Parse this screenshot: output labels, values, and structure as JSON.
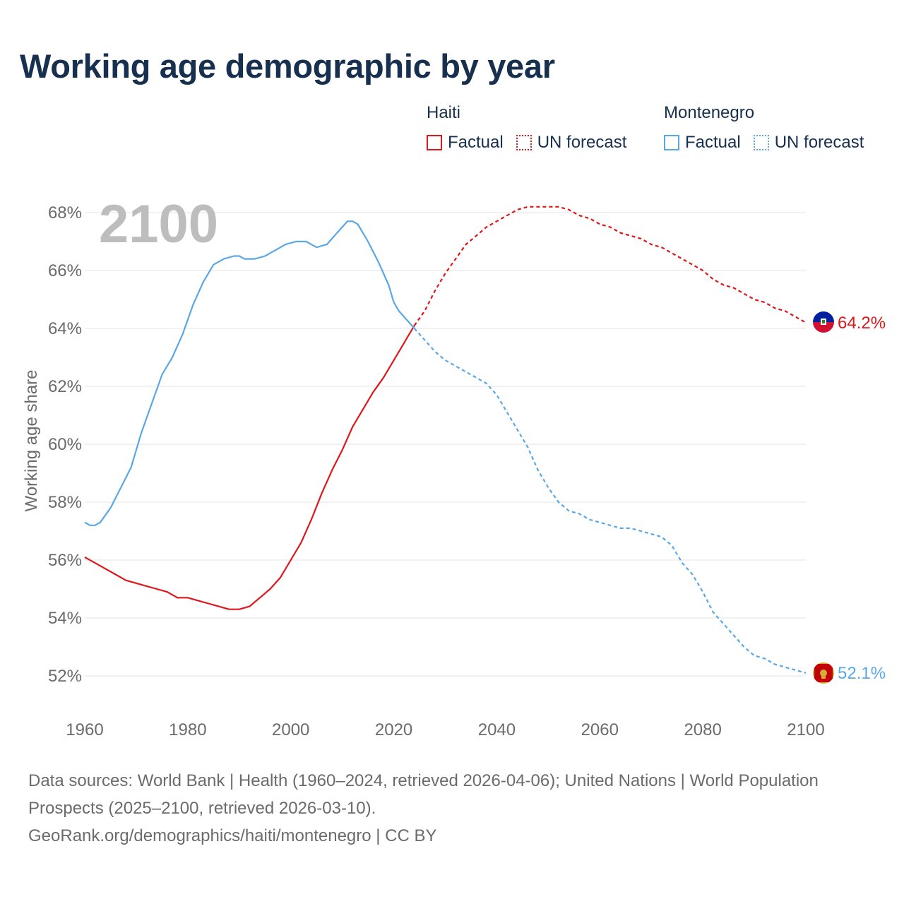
{
  "title": "Working age demographic by year",
  "legend": {
    "groups": [
      {
        "name": "Haiti",
        "color": "#e0161b",
        "items": [
          {
            "label": "Factual",
            "style": "solid"
          },
          {
            "label": "UN forecast",
            "style": "dotted"
          }
        ]
      },
      {
        "name": "Montenegro",
        "color": "#5aa7e6",
        "items": [
          {
            "label": "Factual",
            "style": "solid"
          },
          {
            "label": "UN forecast",
            "style": "dotted"
          }
        ]
      }
    ]
  },
  "chart_data": {
    "type": "line",
    "title": "Working age demographic by year",
    "year_label": "2100",
    "xlabel": "",
    "ylabel": "Working age share",
    "xlim": [
      1960,
      2100
    ],
    "ylim": [
      51,
      69
    ],
    "x_ticks": [
      1960,
      1980,
      2000,
      2020,
      2040,
      2060,
      2080,
      2100
    ],
    "y_ticks": [
      52,
      54,
      56,
      58,
      60,
      62,
      64,
      66,
      68
    ],
    "y_tick_labels": [
      "52%",
      "54%",
      "56%",
      "58%",
      "60%",
      "62%",
      "64%",
      "66%",
      "68%"
    ],
    "grid": true,
    "forecast_start": 2024,
    "series": [
      {
        "name": "Haiti",
        "color": "#e0161b",
        "end_label": "64.2%",
        "flag": "haiti-flag",
        "points": [
          [
            1960,
            56.1
          ],
          [
            1962,
            55.9
          ],
          [
            1964,
            55.7
          ],
          [
            1966,
            55.5
          ],
          [
            1968,
            55.3
          ],
          [
            1970,
            55.2
          ],
          [
            1972,
            55.1
          ],
          [
            1974,
            55.0
          ],
          [
            1976,
            54.9
          ],
          [
            1978,
            54.7
          ],
          [
            1980,
            54.7
          ],
          [
            1982,
            54.6
          ],
          [
            1984,
            54.5
          ],
          [
            1986,
            54.4
          ],
          [
            1988,
            54.3
          ],
          [
            1990,
            54.3
          ],
          [
            1992,
            54.4
          ],
          [
            1994,
            54.7
          ],
          [
            1996,
            55.0
          ],
          [
            1998,
            55.4
          ],
          [
            2000,
            56.0
          ],
          [
            2002,
            56.6
          ],
          [
            2004,
            57.4
          ],
          [
            2006,
            58.3
          ],
          [
            2008,
            59.1
          ],
          [
            2010,
            59.8
          ],
          [
            2012,
            60.6
          ],
          [
            2014,
            61.2
          ],
          [
            2016,
            61.8
          ],
          [
            2018,
            62.3
          ],
          [
            2020,
            62.9
          ],
          [
            2022,
            63.5
          ],
          [
            2024,
            64.1
          ],
          [
            2026,
            64.6
          ],
          [
            2028,
            65.3
          ],
          [
            2030,
            65.9
          ],
          [
            2032,
            66.4
          ],
          [
            2034,
            66.9
          ],
          [
            2036,
            67.2
          ],
          [
            2038,
            67.5
          ],
          [
            2040,
            67.7
          ],
          [
            2042,
            67.9
          ],
          [
            2044,
            68.1
          ],
          [
            2046,
            68.2
          ],
          [
            2048,
            68.2
          ],
          [
            2050,
            68.2
          ],
          [
            2052,
            68.2
          ],
          [
            2054,
            68.1
          ],
          [
            2056,
            67.9
          ],
          [
            2058,
            67.8
          ],
          [
            2060,
            67.6
          ],
          [
            2062,
            67.5
          ],
          [
            2064,
            67.3
          ],
          [
            2066,
            67.2
          ],
          [
            2068,
            67.1
          ],
          [
            2070,
            66.9
          ],
          [
            2072,
            66.8
          ],
          [
            2074,
            66.6
          ],
          [
            2076,
            66.4
          ],
          [
            2078,
            66.2
          ],
          [
            2080,
            66.0
          ],
          [
            2082,
            65.7
          ],
          [
            2084,
            65.5
          ],
          [
            2086,
            65.4
          ],
          [
            2088,
            65.2
          ],
          [
            2090,
            65.0
          ],
          [
            2092,
            64.9
          ],
          [
            2094,
            64.7
          ],
          [
            2096,
            64.6
          ],
          [
            2098,
            64.4
          ],
          [
            2100,
            64.2
          ]
        ]
      },
      {
        "name": "Montenegro",
        "color": "#5aa7e6",
        "end_label": "52.1%",
        "flag": "montenegro-flag",
        "points": [
          [
            1960,
            57.3
          ],
          [
            1961,
            57.2
          ],
          [
            1962,
            57.2
          ],
          [
            1963,
            57.3
          ],
          [
            1965,
            57.8
          ],
          [
            1967,
            58.5
          ],
          [
            1969,
            59.2
          ],
          [
            1971,
            60.4
          ],
          [
            1973,
            61.4
          ],
          [
            1975,
            62.4
          ],
          [
            1977,
            63.0
          ],
          [
            1979,
            63.8
          ],
          [
            1981,
            64.8
          ],
          [
            1983,
            65.6
          ],
          [
            1985,
            66.2
          ],
          [
            1987,
            66.4
          ],
          [
            1989,
            66.5
          ],
          [
            1990,
            66.5
          ],
          [
            1991,
            66.4
          ],
          [
            1993,
            66.4
          ],
          [
            1995,
            66.5
          ],
          [
            1997,
            66.7
          ],
          [
            1999,
            66.9
          ],
          [
            2001,
            67.0
          ],
          [
            2003,
            67.0
          ],
          [
            2005,
            66.8
          ],
          [
            2007,
            66.9
          ],
          [
            2009,
            67.3
          ],
          [
            2010,
            67.5
          ],
          [
            2011,
            67.7
          ],
          [
            2012,
            67.7
          ],
          [
            2013,
            67.6
          ],
          [
            2015,
            67.0
          ],
          [
            2017,
            66.3
          ],
          [
            2019,
            65.5
          ],
          [
            2020,
            64.9
          ],
          [
            2021,
            64.6
          ],
          [
            2022,
            64.4
          ],
          [
            2024,
            64.0
          ],
          [
            2026,
            63.6
          ],
          [
            2028,
            63.2
          ],
          [
            2030,
            62.9
          ],
          [
            2032,
            62.7
          ],
          [
            2034,
            62.5
          ],
          [
            2036,
            62.3
          ],
          [
            2038,
            62.1
          ],
          [
            2040,
            61.7
          ],
          [
            2042,
            61.1
          ],
          [
            2044,
            60.5
          ],
          [
            2046,
            59.9
          ],
          [
            2048,
            59.1
          ],
          [
            2050,
            58.5
          ],
          [
            2052,
            58.0
          ],
          [
            2054,
            57.7
          ],
          [
            2056,
            57.6
          ],
          [
            2058,
            57.4
          ],
          [
            2060,
            57.3
          ],
          [
            2062,
            57.2
          ],
          [
            2064,
            57.1
          ],
          [
            2066,
            57.1
          ],
          [
            2068,
            57.0
          ],
          [
            2070,
            56.9
          ],
          [
            2072,
            56.8
          ],
          [
            2074,
            56.5
          ],
          [
            2076,
            55.9
          ],
          [
            2078,
            55.5
          ],
          [
            2080,
            54.9
          ],
          [
            2082,
            54.2
          ],
          [
            2084,
            53.8
          ],
          [
            2086,
            53.4
          ],
          [
            2088,
            53.0
          ],
          [
            2090,
            52.7
          ],
          [
            2092,
            52.6
          ],
          [
            2094,
            52.4
          ],
          [
            2096,
            52.3
          ],
          [
            2098,
            52.2
          ],
          [
            2100,
            52.1
          ]
        ]
      }
    ]
  },
  "footer": {
    "sources": "Data sources: World Bank | Health (1960–2024, retrieved 2026-04-06); United Nations | World Population Prospects (2025–2100, retrieved 2026-03-10).",
    "link": "GeoRank.org/demographics/haiti/montenegro | CC BY"
  }
}
